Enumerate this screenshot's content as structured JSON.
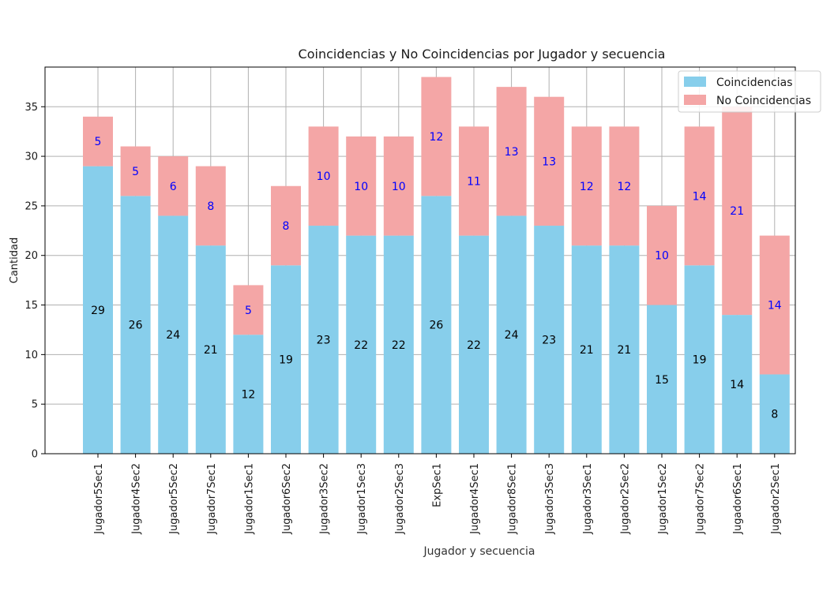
{
  "chart_data": {
    "type": "bar",
    "stacked": true,
    "title": "Coincidencias y No Coincidencias por Jugador y secuencia",
    "xlabel": "Jugador y secuencia",
    "ylabel": "Cantidad",
    "ylim": [
      0,
      39
    ],
    "yticks": [
      0,
      5,
      10,
      15,
      20,
      25,
      30,
      35
    ],
    "grid": true,
    "legend_position": "top-right",
    "categories": [
      "Jugador5Sec1",
      "Jugador4Sec2",
      "Jugador5Sec2",
      "Jugador7Sec1",
      "Jugador1Sec1",
      "Jugador6Sec2",
      "Jugador3Sec2",
      "Jugador1Sec3",
      "Jugador2Sec3",
      "ExpSec1",
      "Jugador4Sec1",
      "Jugador8Sec1",
      "Jugador3Sec3",
      "Jugador3Sec1",
      "Jugador2Sec2",
      "Jugador1Sec2",
      "Jugador7Sec2",
      "Jugador6Sec1",
      "Jugador2Sec1"
    ],
    "series": [
      {
        "name": "Coincidencias",
        "color": "#87ceeb",
        "label_color": "#000000",
        "values": [
          29,
          26,
          24,
          21,
          12,
          19,
          23,
          22,
          22,
          26,
          22,
          24,
          23,
          21,
          21,
          15,
          19,
          14,
          8
        ]
      },
      {
        "name": "No Coincidencias",
        "color": "#f4a6a6",
        "label_color": "#0000ff",
        "values": [
          5,
          5,
          6,
          8,
          5,
          8,
          10,
          10,
          10,
          12,
          11,
          13,
          13,
          12,
          12,
          10,
          14,
          21,
          14
        ]
      }
    ]
  }
}
